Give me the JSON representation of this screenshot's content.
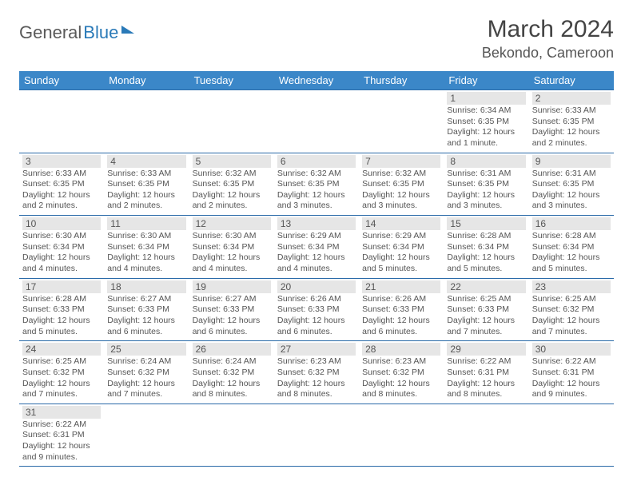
{
  "logo": {
    "part1": "General",
    "part2": "Blue"
  },
  "title": "March 2024",
  "location": "Bekondo, Cameroon",
  "colors": {
    "header_bg": "#3b87c8",
    "header_text": "#ffffff",
    "daynum_bg": "#e6e6e6",
    "border": "#2a6aa8",
    "logo_gray": "#5a5a5a",
    "logo_blue": "#2a7ab8"
  },
  "weekdays": [
    "Sunday",
    "Monday",
    "Tuesday",
    "Wednesday",
    "Thursday",
    "Friday",
    "Saturday"
  ],
  "weeks": [
    [
      null,
      null,
      null,
      null,
      null,
      {
        "day": "1",
        "sunrise": "Sunrise: 6:34 AM",
        "sunset": "Sunset: 6:35 PM",
        "daylight": "Daylight: 12 hours and 1 minute."
      },
      {
        "day": "2",
        "sunrise": "Sunrise: 6:33 AM",
        "sunset": "Sunset: 6:35 PM",
        "daylight": "Daylight: 12 hours and 2 minutes."
      }
    ],
    [
      {
        "day": "3",
        "sunrise": "Sunrise: 6:33 AM",
        "sunset": "Sunset: 6:35 PM",
        "daylight": "Daylight: 12 hours and 2 minutes."
      },
      {
        "day": "4",
        "sunrise": "Sunrise: 6:33 AM",
        "sunset": "Sunset: 6:35 PM",
        "daylight": "Daylight: 12 hours and 2 minutes."
      },
      {
        "day": "5",
        "sunrise": "Sunrise: 6:32 AM",
        "sunset": "Sunset: 6:35 PM",
        "daylight": "Daylight: 12 hours and 2 minutes."
      },
      {
        "day": "6",
        "sunrise": "Sunrise: 6:32 AM",
        "sunset": "Sunset: 6:35 PM",
        "daylight": "Daylight: 12 hours and 3 minutes."
      },
      {
        "day": "7",
        "sunrise": "Sunrise: 6:32 AM",
        "sunset": "Sunset: 6:35 PM",
        "daylight": "Daylight: 12 hours and 3 minutes."
      },
      {
        "day": "8",
        "sunrise": "Sunrise: 6:31 AM",
        "sunset": "Sunset: 6:35 PM",
        "daylight": "Daylight: 12 hours and 3 minutes."
      },
      {
        "day": "9",
        "sunrise": "Sunrise: 6:31 AM",
        "sunset": "Sunset: 6:35 PM",
        "daylight": "Daylight: 12 hours and 3 minutes."
      }
    ],
    [
      {
        "day": "10",
        "sunrise": "Sunrise: 6:30 AM",
        "sunset": "Sunset: 6:34 PM",
        "daylight": "Daylight: 12 hours and 4 minutes."
      },
      {
        "day": "11",
        "sunrise": "Sunrise: 6:30 AM",
        "sunset": "Sunset: 6:34 PM",
        "daylight": "Daylight: 12 hours and 4 minutes."
      },
      {
        "day": "12",
        "sunrise": "Sunrise: 6:30 AM",
        "sunset": "Sunset: 6:34 PM",
        "daylight": "Daylight: 12 hours and 4 minutes."
      },
      {
        "day": "13",
        "sunrise": "Sunrise: 6:29 AM",
        "sunset": "Sunset: 6:34 PM",
        "daylight": "Daylight: 12 hours and 4 minutes."
      },
      {
        "day": "14",
        "sunrise": "Sunrise: 6:29 AM",
        "sunset": "Sunset: 6:34 PM",
        "daylight": "Daylight: 12 hours and 5 minutes."
      },
      {
        "day": "15",
        "sunrise": "Sunrise: 6:28 AM",
        "sunset": "Sunset: 6:34 PM",
        "daylight": "Daylight: 12 hours and 5 minutes."
      },
      {
        "day": "16",
        "sunrise": "Sunrise: 6:28 AM",
        "sunset": "Sunset: 6:34 PM",
        "daylight": "Daylight: 12 hours and 5 minutes."
      }
    ],
    [
      {
        "day": "17",
        "sunrise": "Sunrise: 6:28 AM",
        "sunset": "Sunset: 6:33 PM",
        "daylight": "Daylight: 12 hours and 5 minutes."
      },
      {
        "day": "18",
        "sunrise": "Sunrise: 6:27 AM",
        "sunset": "Sunset: 6:33 PM",
        "daylight": "Daylight: 12 hours and 6 minutes."
      },
      {
        "day": "19",
        "sunrise": "Sunrise: 6:27 AM",
        "sunset": "Sunset: 6:33 PM",
        "daylight": "Daylight: 12 hours and 6 minutes."
      },
      {
        "day": "20",
        "sunrise": "Sunrise: 6:26 AM",
        "sunset": "Sunset: 6:33 PM",
        "daylight": "Daylight: 12 hours and 6 minutes."
      },
      {
        "day": "21",
        "sunrise": "Sunrise: 6:26 AM",
        "sunset": "Sunset: 6:33 PM",
        "daylight": "Daylight: 12 hours and 6 minutes."
      },
      {
        "day": "22",
        "sunrise": "Sunrise: 6:25 AM",
        "sunset": "Sunset: 6:33 PM",
        "daylight": "Daylight: 12 hours and 7 minutes."
      },
      {
        "day": "23",
        "sunrise": "Sunrise: 6:25 AM",
        "sunset": "Sunset: 6:32 PM",
        "daylight": "Daylight: 12 hours and 7 minutes."
      }
    ],
    [
      {
        "day": "24",
        "sunrise": "Sunrise: 6:25 AM",
        "sunset": "Sunset: 6:32 PM",
        "daylight": "Daylight: 12 hours and 7 minutes."
      },
      {
        "day": "25",
        "sunrise": "Sunrise: 6:24 AM",
        "sunset": "Sunset: 6:32 PM",
        "daylight": "Daylight: 12 hours and 7 minutes."
      },
      {
        "day": "26",
        "sunrise": "Sunrise: 6:24 AM",
        "sunset": "Sunset: 6:32 PM",
        "daylight": "Daylight: 12 hours and 8 minutes."
      },
      {
        "day": "27",
        "sunrise": "Sunrise: 6:23 AM",
        "sunset": "Sunset: 6:32 PM",
        "daylight": "Daylight: 12 hours and 8 minutes."
      },
      {
        "day": "28",
        "sunrise": "Sunrise: 6:23 AM",
        "sunset": "Sunset: 6:32 PM",
        "daylight": "Daylight: 12 hours and 8 minutes."
      },
      {
        "day": "29",
        "sunrise": "Sunrise: 6:22 AM",
        "sunset": "Sunset: 6:31 PM",
        "daylight": "Daylight: 12 hours and 8 minutes."
      },
      {
        "day": "30",
        "sunrise": "Sunrise: 6:22 AM",
        "sunset": "Sunset: 6:31 PM",
        "daylight": "Daylight: 12 hours and 9 minutes."
      }
    ],
    [
      {
        "day": "31",
        "sunrise": "Sunrise: 6:22 AM",
        "sunset": "Sunset: 6:31 PM",
        "daylight": "Daylight: 12 hours and 9 minutes."
      },
      null,
      null,
      null,
      null,
      null,
      null
    ]
  ]
}
